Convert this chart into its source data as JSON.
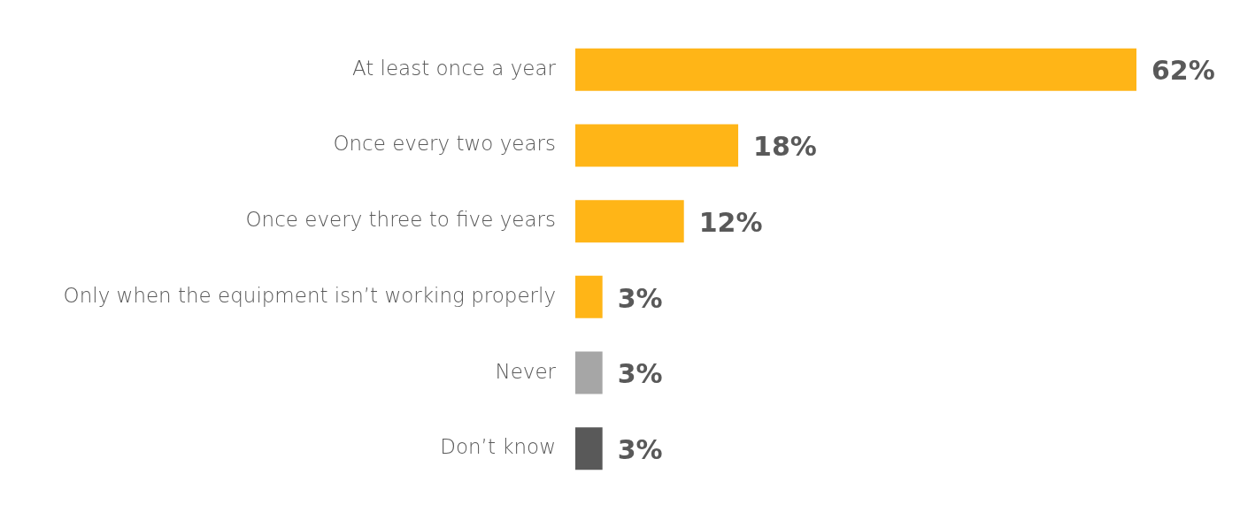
{
  "chart_data": {
    "type": "bar",
    "orientation": "horizontal",
    "tick_labels": "y",
    "categories": [
      "At least once a year",
      "Once every two years",
      "Once every three to five years",
      "Only when the equipment isn’t working properly",
      "Never",
      "Don’t know"
    ],
    "values": [
      62,
      18,
      12,
      3,
      3,
      3
    ],
    "colors": [
      "#ffb517",
      "#ffb517",
      "#ffb517",
      "#ffb517",
      "#a6a6a6",
      "#595959"
    ],
    "value_labels": [
      "62%",
      "18%",
      "12%",
      "3%",
      "3%",
      "3%"
    ]
  }
}
